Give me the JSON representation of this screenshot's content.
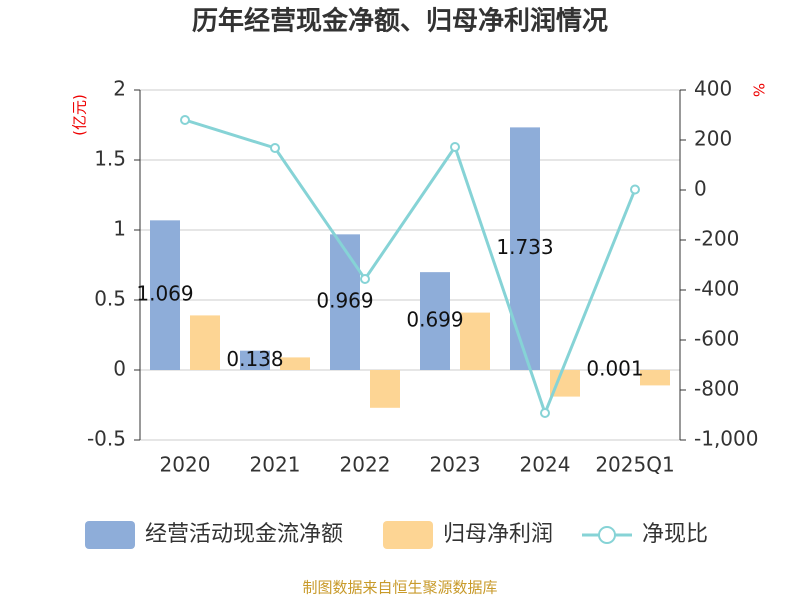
{
  "chart_data": {
    "type": "bar_line",
    "title": "历年经营现金净额、归母净利润情况",
    "y_unit": "(亿元)",
    "y2_unit": "%",
    "categories": [
      "2020",
      "2021",
      "2022",
      "2023",
      "2024",
      "2025Q1"
    ],
    "series": [
      {
        "name": "经营活动现金流净额",
        "color": "#8eadd9",
        "type": "bar",
        "values": [
          1.069,
          0.138,
          0.969,
          0.699,
          1.733,
          0.001
        ]
      },
      {
        "name": "归母净利润",
        "color": "#fdd594",
        "type": "bar",
        "values": [
          0.39,
          0.09,
          -0.27,
          0.41,
          -0.19,
          -0.11
        ]
      },
      {
        "name": "净现比",
        "color": "#86d3d6",
        "type": "line",
        "axis": "y2",
        "values": [
          280,
          168,
          -356,
          172,
          -892,
          2
        ]
      }
    ],
    "ylim": [
      -0.5,
      2
    ],
    "yticks": [
      -0.5,
      0,
      0.5,
      1,
      1.5,
      2
    ],
    "y2lim": [
      -1000,
      400
    ],
    "y2ticks": [
      {
        "value": -1000,
        "label": "-1,000"
      },
      -800,
      -600,
      -400,
      -200,
      0,
      200,
      400
    ],
    "grid": true,
    "source": "制图数据来自恒生聚源数据库"
  }
}
